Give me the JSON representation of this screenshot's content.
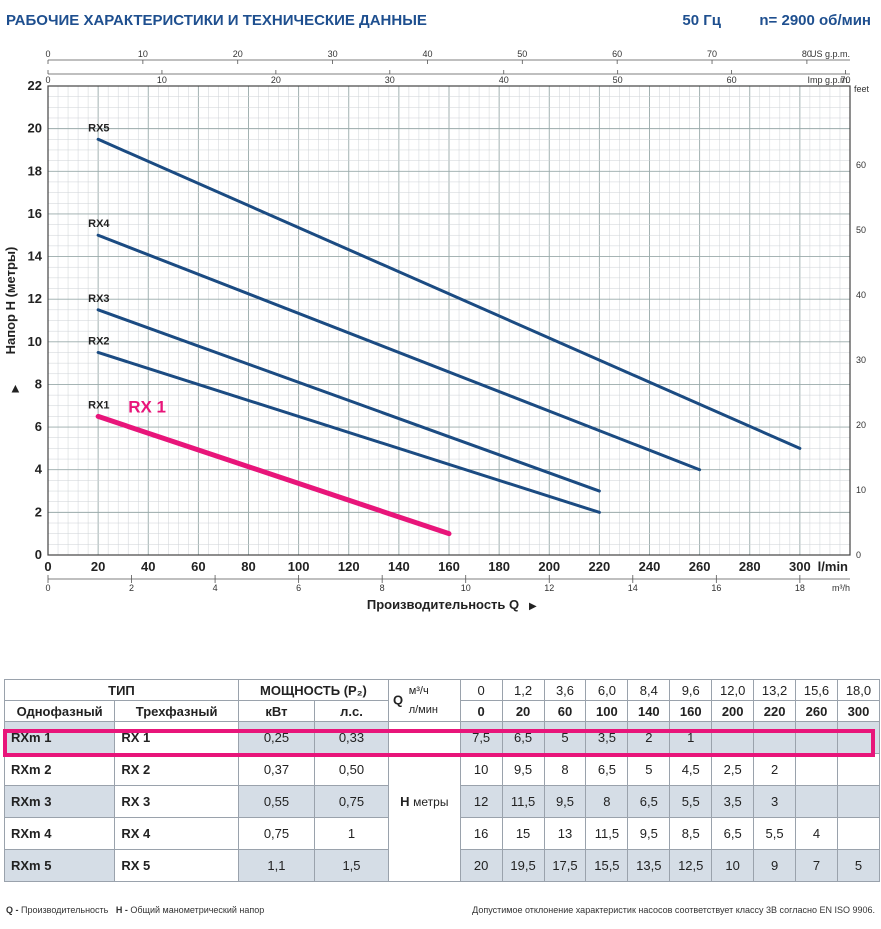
{
  "header": {
    "title": "РАБОЧИЕ ХАРАКТЕРИСТИКИ И ТЕХНИЧЕСКИЕ ДАННЫЕ",
    "frequency": "50 Гц",
    "speed": "n= 2900 об/мин"
  },
  "chart_data": {
    "type": "line",
    "xlabel": "Производительность Q",
    "ylabel": "Напор H (метры)",
    "x_unit": "l/min",
    "x_unit_m3h": "m³/h",
    "x_unit_usgpm": "US g.p.m.",
    "x_unit_impgpm": "Imp g.p.m.",
    "y_unit_feet": "feet",
    "xlim": [
      0,
      320
    ],
    "ylim": [
      0,
      22
    ],
    "x_ticks": [
      0,
      20,
      40,
      60,
      80,
      100,
      120,
      140,
      160,
      180,
      200,
      220,
      240,
      260,
      280,
      300
    ],
    "y_ticks": [
      0,
      2,
      4,
      6,
      8,
      10,
      12,
      14,
      16,
      18,
      20,
      22
    ],
    "m3h_ticks": [
      0,
      2,
      4,
      6,
      8,
      10,
      12,
      14,
      16,
      18
    ],
    "usgpm_ticks": [
      0,
      10,
      20,
      30,
      40,
      50,
      60,
      70,
      80
    ],
    "impgpm_ticks": [
      0,
      10,
      20,
      30,
      40,
      50,
      60,
      70
    ],
    "feet_ticks": [
      0,
      10,
      20,
      30,
      40,
      50,
      60
    ],
    "grid": true,
    "highlight_label": "RX 1",
    "series": [
      {
        "name": "RX1",
        "x": [
          20,
          160
        ],
        "y": [
          6.5,
          1
        ],
        "color": "#e8157a"
      },
      {
        "name": "RX2",
        "x": [
          20,
          220
        ],
        "y": [
          9.5,
          2
        ],
        "color": "#1b4b82"
      },
      {
        "name": "RX3",
        "x": [
          20,
          220
        ],
        "y": [
          11.5,
          3
        ],
        "color": "#1b4b82"
      },
      {
        "name": "RX4",
        "x": [
          20,
          260
        ],
        "y": [
          15,
          4
        ],
        "color": "#1b4b82"
      },
      {
        "name": "RX5",
        "x": [
          20,
          300
        ],
        "y": [
          19.5,
          5
        ],
        "color": "#1b4b82"
      }
    ]
  },
  "table": {
    "type_header": "ТИП",
    "power_header": "МОЩНОСТЬ (P₂)",
    "q_label": "Q",
    "single_phase": "Однофазный",
    "three_phase": "Трехфазный",
    "kw": "кВт",
    "hp": "л.с.",
    "m3h_unit": "м³/ч",
    "lmin_unit": "л/мин",
    "h_label": "H",
    "h_unit": "метры",
    "q_m3h": [
      "0",
      "1,2",
      "3,6",
      "6,0",
      "8,4",
      "9,6",
      "12,0",
      "13,2",
      "15,6",
      "18,0"
    ],
    "q_lmin": [
      "0",
      "20",
      "60",
      "100",
      "140",
      "160",
      "200",
      "220",
      "260",
      "300"
    ],
    "rows": [
      {
        "single": "RXm 1",
        "three": "RX 1",
        "kw": "0,25",
        "hp": "0,33",
        "h": [
          "7,5",
          "6,5",
          "5",
          "3,5",
          "2",
          "1",
          "",
          "",
          "",
          ""
        ]
      },
      {
        "single": "RXm 2",
        "three": "RX 2",
        "kw": "0,37",
        "hp": "0,50",
        "h": [
          "10",
          "9,5",
          "8",
          "6,5",
          "5",
          "4,5",
          "2,5",
          "2",
          "",
          ""
        ]
      },
      {
        "single": "RXm 3",
        "three": "RX 3",
        "kw": "0,55",
        "hp": "0,75",
        "h": [
          "12",
          "11,5",
          "9,5",
          "8",
          "6,5",
          "5,5",
          "3,5",
          "3",
          "",
          ""
        ]
      },
      {
        "single": "RXm 4",
        "three": "RX 4",
        "kw": "0,75",
        "hp": "1",
        "h": [
          "16",
          "15",
          "13",
          "11,5",
          "9,5",
          "8,5",
          "6,5",
          "5,5",
          "4",
          ""
        ]
      },
      {
        "single": "RXm 5",
        "three": "RX 5",
        "kw": "1,1",
        "hp": "1,5",
        "h": [
          "20",
          "19,5",
          "17,5",
          "15,5",
          "13,5",
          "12,5",
          "10",
          "9",
          "7",
          "5"
        ]
      }
    ]
  },
  "footnote": {
    "q_key": "Q -",
    "q_text": "Производительность",
    "h_key": "H -",
    "h_text": "Общий манометрический напор",
    "tolerance": "Допустимое отклонение характеристик насосов соответствует классу 3B согласно EN ISO 9906."
  }
}
